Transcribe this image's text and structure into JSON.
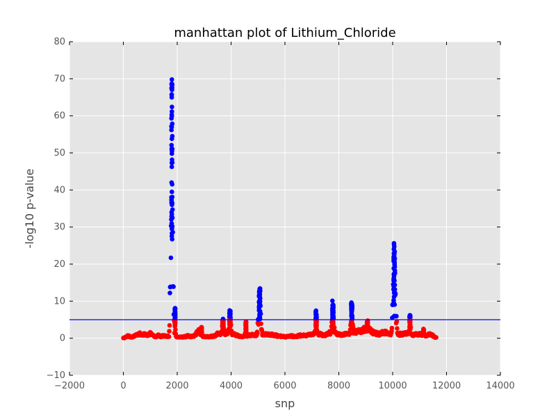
{
  "chart_data": {
    "type": "scatter",
    "title": "manhattan plot of Lithium_Chloride",
    "xlabel": "snp",
    "ylabel": "-log10 p-value",
    "xlim": [
      -2000,
      14000
    ],
    "ylim": [
      -10,
      80
    ],
    "x_ticks": [
      -2000,
      0,
      2000,
      4000,
      6000,
      8000,
      10000,
      12000,
      14000
    ],
    "y_ticks": [
      -10,
      0,
      10,
      20,
      30,
      40,
      50,
      60,
      70,
      80
    ],
    "grid": true,
    "threshold": 5,
    "colors": {
      "above_threshold": "#0000ff",
      "below_threshold": "#ff0000",
      "threshold_line": "#0000ff",
      "plot_background": "#e5e5e5",
      "grid": "#ffffff"
    },
    "baseline_segments": [
      [
        0,
        0.2
      ],
      [
        100,
        0.5
      ],
      [
        200,
        1.0
      ],
      [
        300,
        0.4
      ],
      [
        400,
        0.8
      ],
      [
        500,
        1.4
      ],
      [
        600,
        1.7
      ],
      [
        700,
        1.2
      ],
      [
        800,
        1.6
      ],
      [
        900,
        1.3
      ],
      [
        1000,
        1.8
      ],
      [
        1100,
        1.0
      ],
      [
        1200,
        0.6
      ],
      [
        1300,
        1.1
      ],
      [
        1400,
        0.7
      ],
      [
        1500,
        1.0
      ],
      [
        1600,
        0.8
      ],
      [
        2000,
        0.6
      ],
      [
        2200,
        0.5
      ],
      [
        2400,
        0.9
      ],
      [
        2600,
        0.7
      ],
      [
        2800,
        2.6
      ],
      [
        2900,
        0.8
      ],
      [
        3000,
        0.7
      ],
      [
        3200,
        0.6
      ],
      [
        3400,
        0.9
      ],
      [
        3500,
        1.8
      ],
      [
        4100,
        1.5
      ],
      [
        4300,
        0.8
      ],
      [
        4400,
        0.6
      ],
      [
        4600,
        1.0
      ],
      [
        4800,
        1.2
      ],
      [
        5400,
        1.5
      ],
      [
        5600,
        1.2
      ],
      [
        5800,
        0.8
      ],
      [
        6000,
        0.6
      ],
      [
        6200,
        0.9
      ],
      [
        6400,
        0.7
      ],
      [
        6600,
        1.2
      ],
      [
        6800,
        1.0
      ],
      [
        7000,
        1.6
      ],
      [
        7300,
        1.5
      ],
      [
        7500,
        1.2
      ],
      [
        7600,
        2.0
      ],
      [
        7900,
        1.8
      ],
      [
        8100,
        1.3
      ],
      [
        8300,
        1.5
      ],
      [
        8700,
        2.5
      ],
      [
        8900,
        3.0
      ],
      [
        9100,
        3.5
      ],
      [
        9300,
        2.0
      ],
      [
        9500,
        1.5
      ],
      [
        9700,
        2.2
      ],
      [
        9900,
        1.6
      ],
      [
        10300,
        1.5
      ],
      [
        10500,
        1.8
      ],
      [
        10800,
        1.3
      ],
      [
        11000,
        1.6
      ],
      [
        11200,
        0.9
      ],
      [
        11400,
        1.5
      ],
      [
        11600,
        0.4
      ]
    ],
    "peaks": [
      {
        "center": 1800,
        "width": 110,
        "max": 69.8
      },
      {
        "center": 1920,
        "width": 40,
        "max": 8.5
      },
      {
        "center": 2900,
        "width": 60,
        "max": 3.0
      },
      {
        "center": 3700,
        "width": 120,
        "max": 5.2
      },
      {
        "center": 3960,
        "width": 120,
        "max": 8.2
      },
      {
        "center": 4550,
        "width": 60,
        "max": 4.5
      },
      {
        "center": 5060,
        "width": 130,
        "max": 13.6
      },
      {
        "center": 7160,
        "width": 100,
        "max": 7.5
      },
      {
        "center": 7780,
        "width": 110,
        "max": 10.2
      },
      {
        "center": 8480,
        "width": 100,
        "max": 10.0
      },
      {
        "center": 9060,
        "width": 100,
        "max": 4.8
      },
      {
        "center": 10060,
        "width": 140,
        "max": 25.6
      },
      {
        "center": 10640,
        "width": 80,
        "max": 6.2
      },
      {
        "center": 11150,
        "width": 60,
        "max": 2.5
      }
    ],
    "outliers": [
      {
        "x": 1800,
        "y": 69.8
      },
      {
        "x": 1790,
        "y": 68.5
      },
      {
        "x": 1805,
        "y": 67.0
      },
      {
        "x": 1795,
        "y": 65.7
      },
      {
        "x": 1800,
        "y": 53.8
      },
      {
        "x": 1805,
        "y": 50.5
      },
      {
        "x": 1800,
        "y": 49.8
      },
      {
        "x": 1790,
        "y": 42.0
      },
      {
        "x": 1800,
        "y": 39.5
      },
      {
        "x": 1795,
        "y": 38.0
      },
      {
        "x": 1805,
        "y": 36.0
      },
      {
        "x": 1790,
        "y": 34.0
      },
      {
        "x": 10050,
        "y": 25.6
      },
      {
        "x": 10080,
        "y": 14.4
      },
      {
        "x": 10060,
        "y": 6.0
      }
    ]
  }
}
